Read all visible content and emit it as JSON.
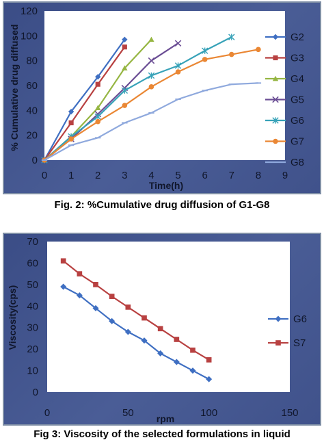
{
  "figure1": {
    "caption": "Fig. 2: %Cumulative drug diffusion of G1-G8",
    "chart_data": {
      "type": "line",
      "xlabel": "Time(h)",
      "ylabel": "% Cumulative drug diffused",
      "xlim": [
        0,
        9
      ],
      "ylim": [
        0,
        120
      ],
      "xticks": [
        0,
        1,
        2,
        3,
        4,
        5,
        6,
        7,
        8,
        9
      ],
      "yticks": [
        0,
        20,
        40,
        60,
        80,
        100,
        120
      ],
      "legend_position": "right",
      "series": [
        {
          "name": "G2",
          "color": "#3f6fc2",
          "marker": "diamond",
          "x": [
            0,
            1,
            2,
            3
          ],
          "y": [
            0,
            39,
            67,
            97
          ]
        },
        {
          "name": "G3",
          "color": "#b84141",
          "marker": "square",
          "x": [
            0,
            1,
            2,
            3
          ],
          "y": [
            0,
            30,
            61,
            91
          ]
        },
        {
          "name": "G4",
          "color": "#96b643",
          "marker": "triangle",
          "x": [
            0,
            1,
            2,
            3,
            4
          ],
          "y": [
            0,
            19,
            42,
            74,
            97
          ]
        },
        {
          "name": "G5",
          "color": "#6a4d94",
          "marker": "x",
          "x": [
            0,
            1,
            2,
            3,
            4,
            5
          ],
          "y": [
            0,
            17,
            37,
            58,
            80,
            94
          ]
        },
        {
          "name": "G6",
          "color": "#37a2b8",
          "marker": "asterisk",
          "x": [
            0,
            1,
            2,
            3,
            4,
            5,
            6,
            7
          ],
          "y": [
            0,
            19,
            35,
            56,
            68,
            76,
            88,
            99
          ]
        },
        {
          "name": "G7",
          "color": "#ea8734",
          "marker": "circle",
          "x": [
            0,
            1,
            2,
            3,
            4,
            5,
            6,
            7,
            8
          ],
          "y": [
            0,
            17,
            31,
            44,
            59,
            71,
            81,
            85,
            89
          ]
        },
        {
          "name": "G8",
          "color": "#8fa9dd",
          "marker": "dash",
          "x": [
            0,
            1,
            2,
            3,
            4,
            5,
            6,
            7,
            8
          ],
          "y": [
            0,
            12,
            18,
            30,
            38,
            49,
            56,
            61,
            62
          ]
        }
      ]
    }
  },
  "figure2": {
    "caption": "Fig 3: Viscosity of the selected formulations in liquid",
    "chart_data": {
      "type": "line",
      "xlabel": "rpm",
      "ylabel": "Viscosity(cps)",
      "xlim": [
        0,
        150
      ],
      "ylim": [
        0,
        70
      ],
      "xticks": [
        0,
        50,
        100,
        150
      ],
      "yticks": [
        0,
        10,
        20,
        30,
        40,
        50,
        60,
        70
      ],
      "legend_position": "right",
      "series": [
        {
          "name": "G6",
          "color": "#3f6fc2",
          "marker": "diamond",
          "x": [
            10,
            20,
            30,
            40,
            50,
            60,
            70,
            80,
            90,
            100
          ],
          "y": [
            49,
            45,
            39,
            33,
            28,
            24,
            18,
            14,
            10,
            6
          ]
        },
        {
          "name": "S7",
          "color": "#b84141",
          "marker": "square",
          "x": [
            10,
            20,
            30,
            40,
            50,
            60,
            70,
            80,
            90,
            100
          ],
          "y": [
            61,
            55,
            50,
            44.5,
            39.5,
            34.5,
            29.5,
            24.5,
            19.5,
            15
          ]
        }
      ]
    }
  }
}
